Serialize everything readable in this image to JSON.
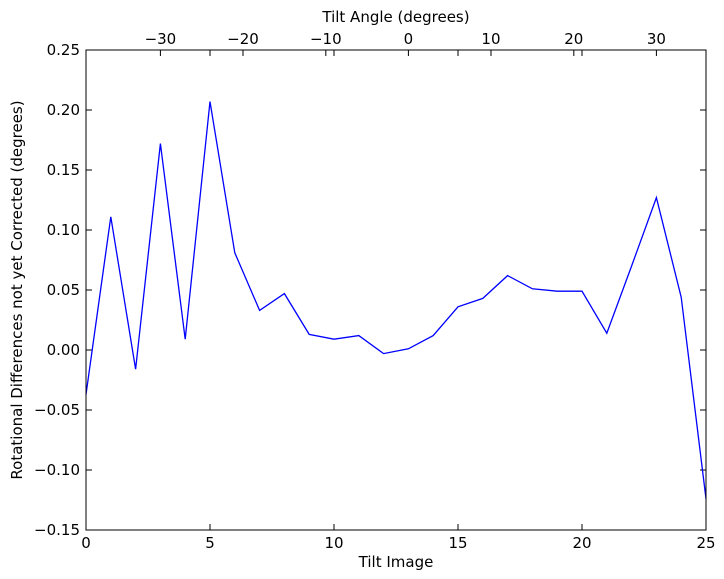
{
  "chart_data": {
    "type": "line",
    "xlabel": "Tilt Image",
    "top_xlabel": "Tilt Angle (degrees)",
    "ylabel": "Rotational Differences not yet Corrected (degrees)",
    "xlim": [
      0,
      25
    ],
    "ylim": [
      -0.15,
      0.25
    ],
    "x_ticks": [
      0,
      5,
      10,
      15,
      20,
      25
    ],
    "y_ticks": [
      -0.15,
      -0.1,
      -0.05,
      0.0,
      0.05,
      0.1,
      0.15,
      0.2,
      0.25
    ],
    "y_tick_labels": [
      "−0.15",
      "−0.10",
      "−0.05",
      "0.00",
      "0.05",
      "0.10",
      "0.15",
      "0.20",
      "0.25"
    ],
    "top_ticks": [
      {
        "label": "−30",
        "tilt_image": 3.0
      },
      {
        "label": "−20",
        "tilt_image": 6.33
      },
      {
        "label": "−10",
        "tilt_image": 9.67
      },
      {
        "label": "0",
        "tilt_image": 13.0
      },
      {
        "label": "10",
        "tilt_image": 16.33
      },
      {
        "label": "20",
        "tilt_image": 19.67
      },
      {
        "label": "30",
        "tilt_image": 23.0
      }
    ],
    "series": [
      {
        "color": "#0000ff",
        "x": [
          0,
          1,
          2,
          3,
          4,
          5,
          6,
          7,
          8,
          9,
          10,
          11,
          12,
          13,
          14,
          15,
          16,
          17,
          18,
          19,
          20,
          21,
          22,
          23,
          24,
          25
        ],
        "values": [
          -0.037,
          0.111,
          -0.016,
          0.172,
          0.009,
          0.207,
          0.081,
          0.033,
          0.047,
          0.013,
          0.009,
          0.012,
          -0.003,
          0.001,
          0.012,
          0.036,
          0.043,
          0.062,
          0.051,
          0.049,
          0.049,
          0.014,
          0.07,
          0.127,
          0.044,
          -0.124
        ]
      }
    ]
  }
}
